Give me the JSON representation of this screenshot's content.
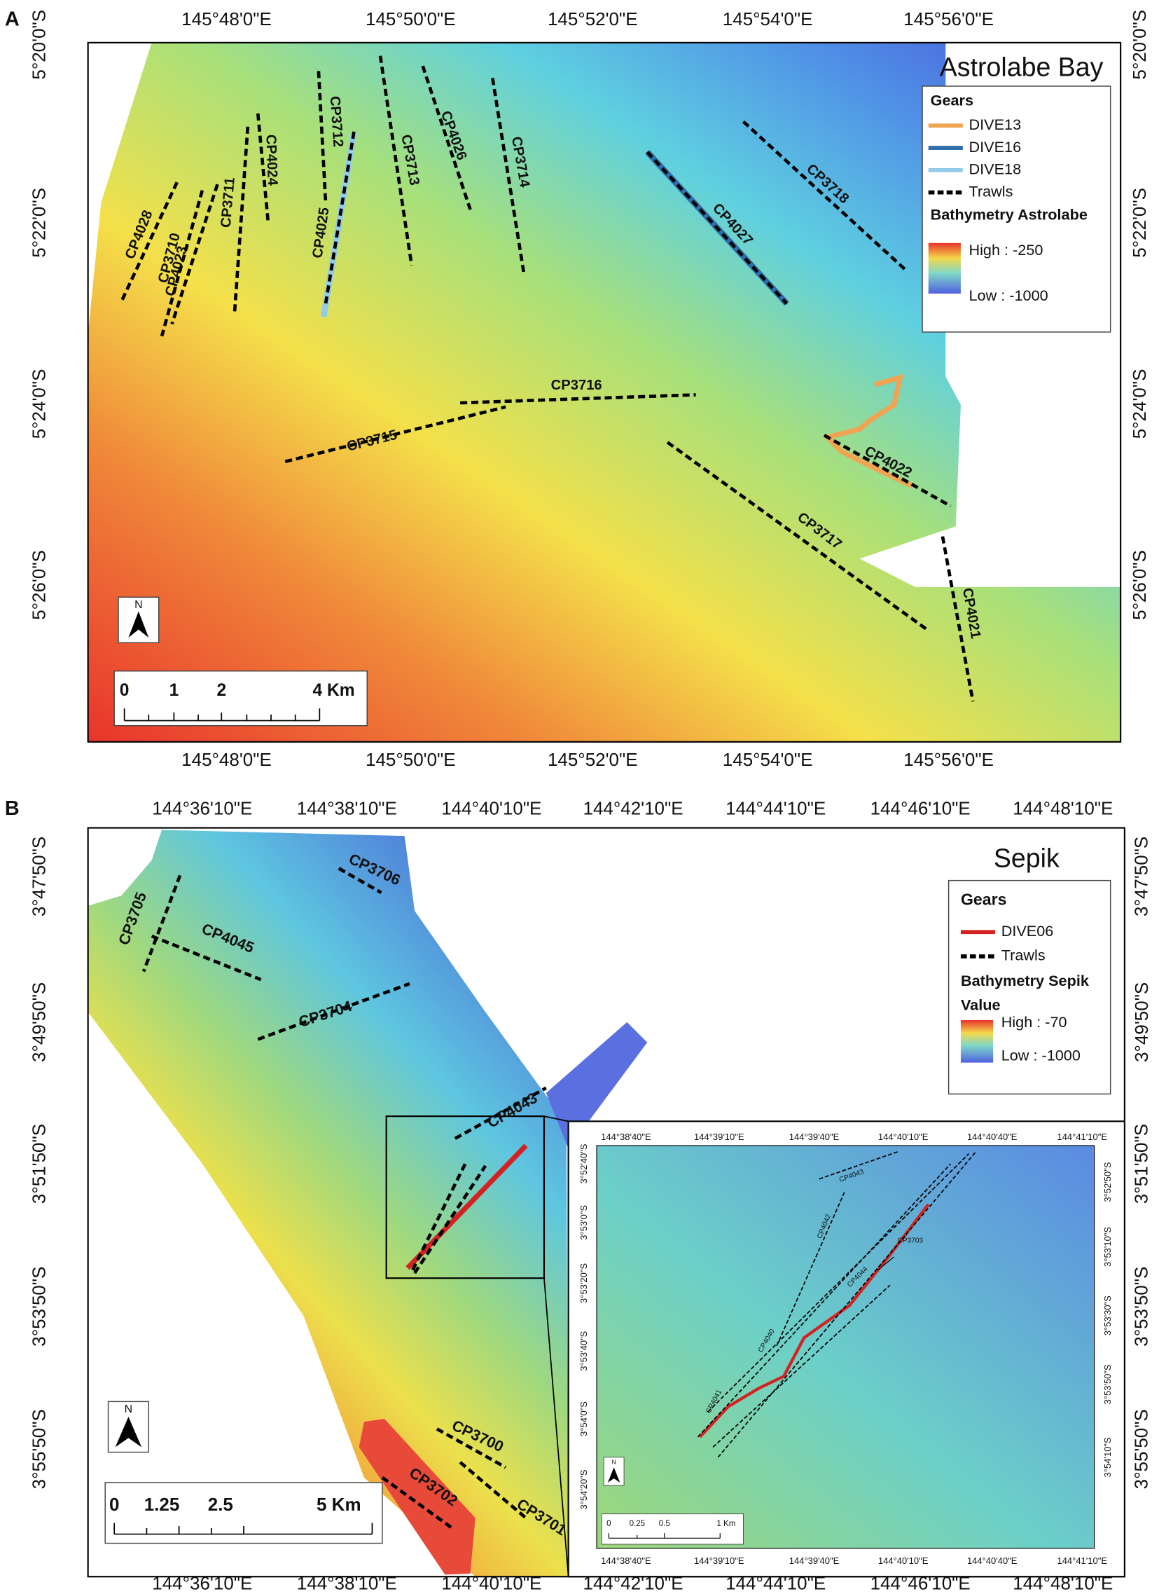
{
  "panel_a": {
    "panel_label": "A",
    "title": "Astrolabe Bay",
    "top_labels": [
      "145°48'0\"E",
      "145°50'0\"E",
      "145°52'0\"E",
      "145°54'0\"E",
      "145°56'0\"E"
    ],
    "bottom_labels": [
      "145°48'0\"E",
      "145°50'0\"E",
      "145°52'0\"E",
      "145°54'0\"E",
      "145°56'0\"E"
    ],
    "left_labels": [
      "5°20'0\"S",
      "5°22'0\"S",
      "5°24'0\"S",
      "5°26'0\"S"
    ],
    "right_labels": [
      "5°20'0\"S",
      "5°22'0\"S",
      "5°24'0\"S",
      "5°26'0\"S"
    ],
    "trawls": [
      "CP4028",
      "CP3710",
      "CP4023",
      "CP3711",
      "CP4024",
      "CP3712",
      "CP4025",
      "CP3713",
      "CP4026",
      "CP3714",
      "CP4027",
      "CP3718",
      "CP3716",
      "CP3715",
      "CP4022",
      "CP3717",
      "CP4021"
    ],
    "legend": {
      "title": "Gears",
      "items": [
        {
          "label": "DIVE13",
          "color": "#f0a452"
        },
        {
          "label": "DIVE16",
          "color": "#2f6ea8"
        },
        {
          "label": "DIVE18",
          "color": "#93cbe8"
        },
        {
          "label": "Trawls",
          "color": "#000000"
        }
      ],
      "bathymetry_title": "Bathymetry Astrolabe",
      "high": "High : -250",
      "low": "Low : -1000"
    },
    "north": "N",
    "scale_labels": [
      "0",
      "1",
      "2",
      "4 Km"
    ]
  },
  "panel_b": {
    "panel_label": "B",
    "title": "Sepik",
    "top_labels": [
      "144°36'10\"E",
      "144°38'10\"E",
      "144°40'10\"E",
      "144°42'10\"E",
      "144°44'10\"E",
      "144°46'10\"E",
      "144°48'10\"E"
    ],
    "bottom_labels": [
      "144°36'10\"E",
      "144°38'10\"E",
      "144°40'10\"E",
      "144°42'10\"E",
      "144°44'10\"E",
      "144°46'10\"E",
      "144°48'10\"E"
    ],
    "left_labels": [
      "3°47'50\"S",
      "3°49'50\"S",
      "3°51'50\"S",
      "3°53'50\"S",
      "3°55'50\"S"
    ],
    "right_labels": [
      "3°47'50\"S",
      "3°49'50\"S",
      "3°51'50\"S",
      "3°53'50\"S",
      "3°55'50\"S"
    ],
    "trawls": [
      "CP3705",
      "CP4045",
      "CP3706",
      "CP3704",
      "CP4043",
      "CP3700",
      "CP3702",
      "CP3701"
    ],
    "legend": {
      "title": "Gears",
      "items": [
        {
          "label": "DIVE06",
          "color": "#d42222"
        },
        {
          "label": "Trawls",
          "color": "#000000"
        }
      ],
      "bathymetry_title": "Bathymetry Sepik",
      "value_title": "Value",
      "high": "High : -70",
      "low": "Low : -1000"
    },
    "north": "N",
    "scale_labels": [
      "0",
      "1.25",
      "2.5",
      "5 Km"
    ],
    "inset": {
      "top_labels": [
        "144°38'40\"E",
        "144°39'10\"E",
        "144°39'40\"E",
        "144°40'10\"E",
        "144°40'40\"E",
        "144°41'10\"E"
      ],
      "bottom_labels": [
        "144°38'40\"E",
        "144°39'10\"E",
        "144°39'40\"E",
        "144°40'10\"E",
        "144°40'40\"E",
        "144°41'10\"E"
      ],
      "left_labels": [
        "3°52'40\"S",
        "3°53'0\"S",
        "3°53'20\"S",
        "3°53'40\"S",
        "3°54'0\"S",
        "3°54'20\"S"
      ],
      "right_labels": [
        "3°52'50\"S",
        "3°53'10\"S",
        "3°53'30\"S",
        "3°53'50\"S",
        "3°54'10\"S"
      ],
      "trawls": [
        "CP4043",
        "CP3703",
        "CP4042",
        "CP4044",
        "CP4040",
        "CP4041"
      ],
      "north": "N",
      "scale_labels": [
        "0",
        "0.25",
        "0.5",
        "1 Km"
      ]
    }
  }
}
